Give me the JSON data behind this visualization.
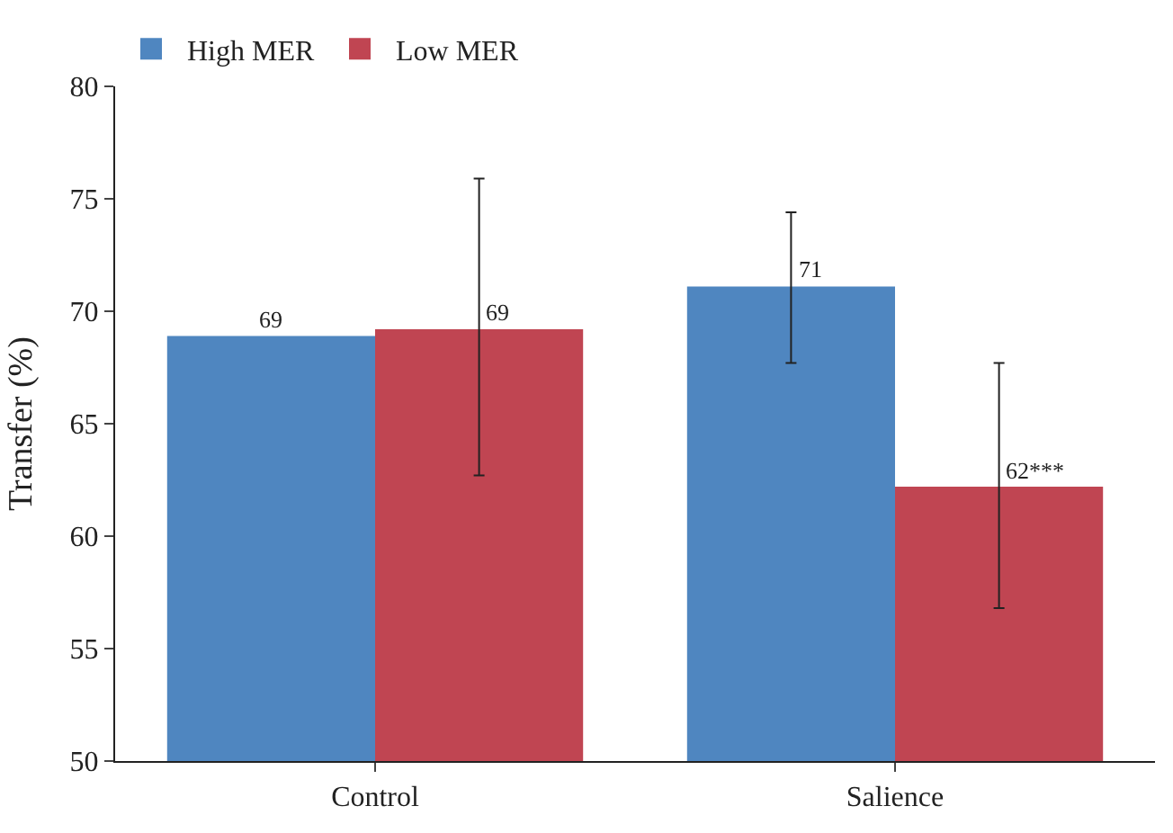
{
  "chart_data": {
    "type": "bar",
    "ylabel": "Transfer (%)",
    "categories": [
      "Control",
      "Salience"
    ],
    "series": [
      {
        "name": "High MER",
        "color": "#4f86c0",
        "values": [
          68.9,
          71.1
        ],
        "errors": [
          null,
          [
            67.7,
            74.4
          ]
        ],
        "value_labels": [
          "69",
          "71"
        ]
      },
      {
        "name": "Low MER",
        "color": "#c04552",
        "values": [
          69.2,
          62.2
        ],
        "errors": [
          [
            62.7,
            75.9
          ],
          [
            56.8,
            67.7
          ]
        ],
        "value_labels": [
          "69",
          "62***"
        ]
      }
    ],
    "ylim": [
      50,
      80
    ],
    "yticks": [
      50,
      55,
      60,
      65,
      70,
      75,
      80
    ],
    "legend": "top left"
  }
}
